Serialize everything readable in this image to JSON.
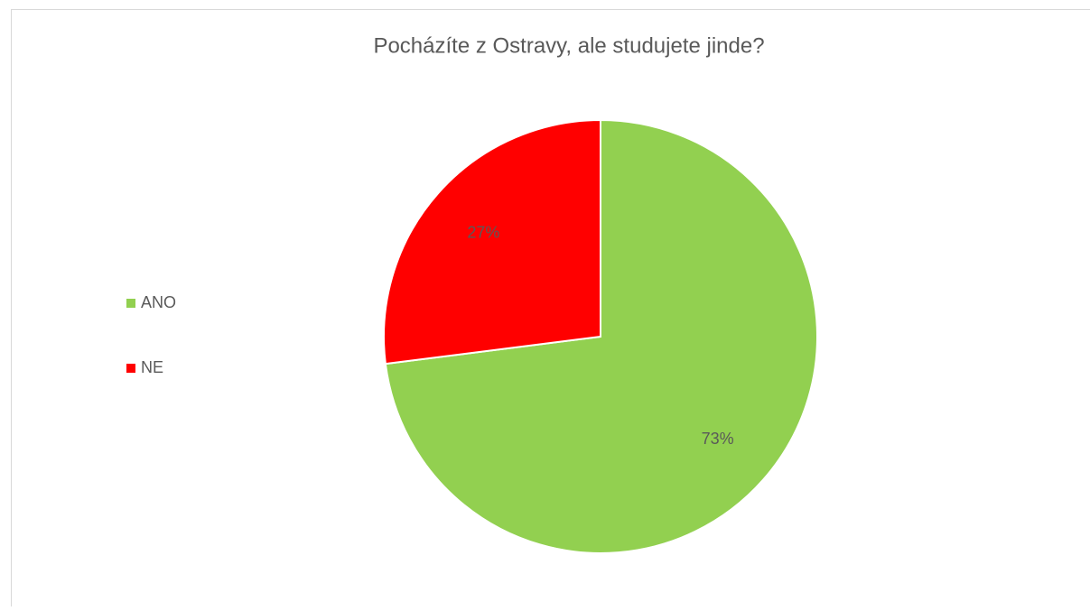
{
  "chart_data": {
    "type": "pie",
    "title": "Pocházíte z Ostravy, ale studujete jinde?",
    "categories": [
      "ANO",
      "NE"
    ],
    "values": [
      73,
      27
    ],
    "value_labels": [
      "73%",
      "27%"
    ],
    "colors": [
      "#92d050",
      "#ff0000"
    ],
    "legend": "left"
  }
}
